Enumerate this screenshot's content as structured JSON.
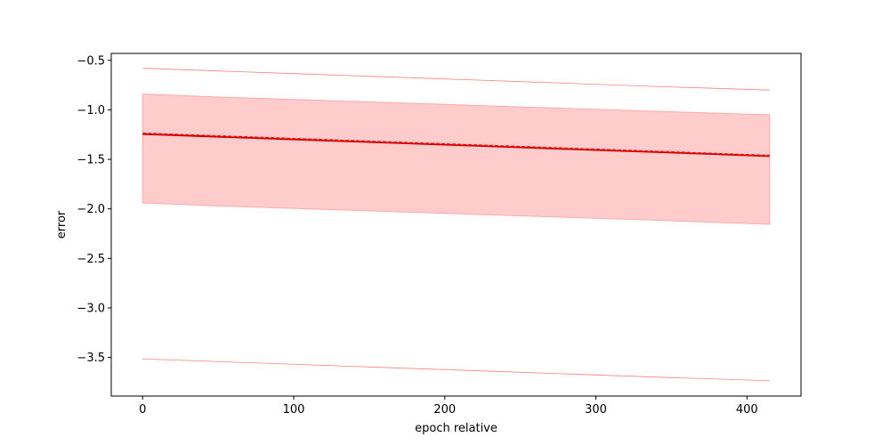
{
  "chart_data": {
    "type": "line",
    "title": "",
    "xlabel": "epoch relative",
    "ylabel": "error",
    "xlim": [
      -20.75,
      435.75
    ],
    "ylim": [
      -3.89,
      -0.43
    ],
    "x_ticks": [
      0,
      100,
      200,
      300,
      400
    ],
    "x_tick_labels": [
      "0",
      "100",
      "200",
      "300",
      "400"
    ],
    "y_ticks": [
      -3.5,
      -3.0,
      -2.5,
      -2.0,
      -1.5,
      -1.0,
      -0.5
    ],
    "y_tick_labels": [
      "−3.5",
      "−3.0",
      "−2.5",
      "−2.0",
      "−1.5",
      "−1.0",
      "−0.5"
    ],
    "grid": false,
    "x": [
      0,
      50,
      100,
      150,
      200,
      250,
      300,
      350,
      415
    ],
    "series": [
      {
        "role": "mean",
        "style": "solid",
        "color": "#cc0000",
        "values": [
          -1.245,
          -1.272,
          -1.299,
          -1.325,
          -1.352,
          -1.379,
          -1.406,
          -1.432,
          -1.468
        ]
      },
      {
        "role": "median",
        "style": "dashed",
        "color": "#ff0000",
        "values": [
          -1.235,
          -1.262,
          -1.289,
          -1.316,
          -1.343,
          -1.37,
          -1.397,
          -1.424,
          -1.46
        ]
      },
      {
        "role": "band-upper",
        "style": "fill",
        "color": "#ffcccc",
        "values": [
          -0.84,
          -0.87,
          -0.895,
          -0.92,
          -0.945,
          -0.97,
          -0.995,
          -1.02,
          -1.05
        ]
      },
      {
        "role": "band-lower",
        "style": "fill",
        "color": "#ffcccc",
        "values": [
          -1.94,
          -1.97,
          -1.995,
          -2.02,
          -2.045,
          -2.07,
          -2.095,
          -2.12,
          -2.155
        ]
      },
      {
        "role": "outer-upper",
        "style": "thin",
        "color": "#ff8080",
        "values": [
          -0.58,
          -0.607,
          -0.634,
          -0.661,
          -0.688,
          -0.715,
          -0.742,
          -0.769,
          -0.8
        ]
      },
      {
        "role": "outer-lower",
        "style": "thin",
        "color": "#ff8080",
        "values": [
          -3.515,
          -3.542,
          -3.569,
          -3.596,
          -3.623,
          -3.65,
          -3.677,
          -3.704,
          -3.735
        ]
      }
    ]
  }
}
